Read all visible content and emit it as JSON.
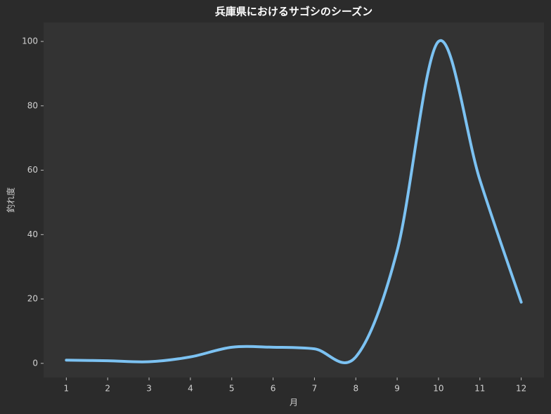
{
  "chart_data": {
    "type": "line",
    "title": "兵庫県におけるサゴシのシーズン",
    "x_label": "月",
    "y_label": "釣れ度",
    "x": [
      1,
      2,
      3,
      4,
      5,
      6,
      7,
      8,
      9,
      10,
      11,
      12
    ],
    "series": [
      {
        "name": "釣れ度",
        "color": "#7cc2f2",
        "values": [
          1,
          0.8,
          0.5,
          2,
          5,
          5,
          4.5,
          2,
          35,
          100,
          57,
          19
        ]
      }
    ],
    "xlim": [
      0.45,
      12.55
    ],
    "xticks": [
      1,
      2,
      3,
      4,
      5,
      6,
      7,
      8,
      9,
      10,
      11,
      12
    ],
    "ylim": [
      -4.4,
      105.9
    ],
    "yticks": [
      0,
      20,
      40,
      60,
      80,
      100
    ],
    "grid": false
  }
}
